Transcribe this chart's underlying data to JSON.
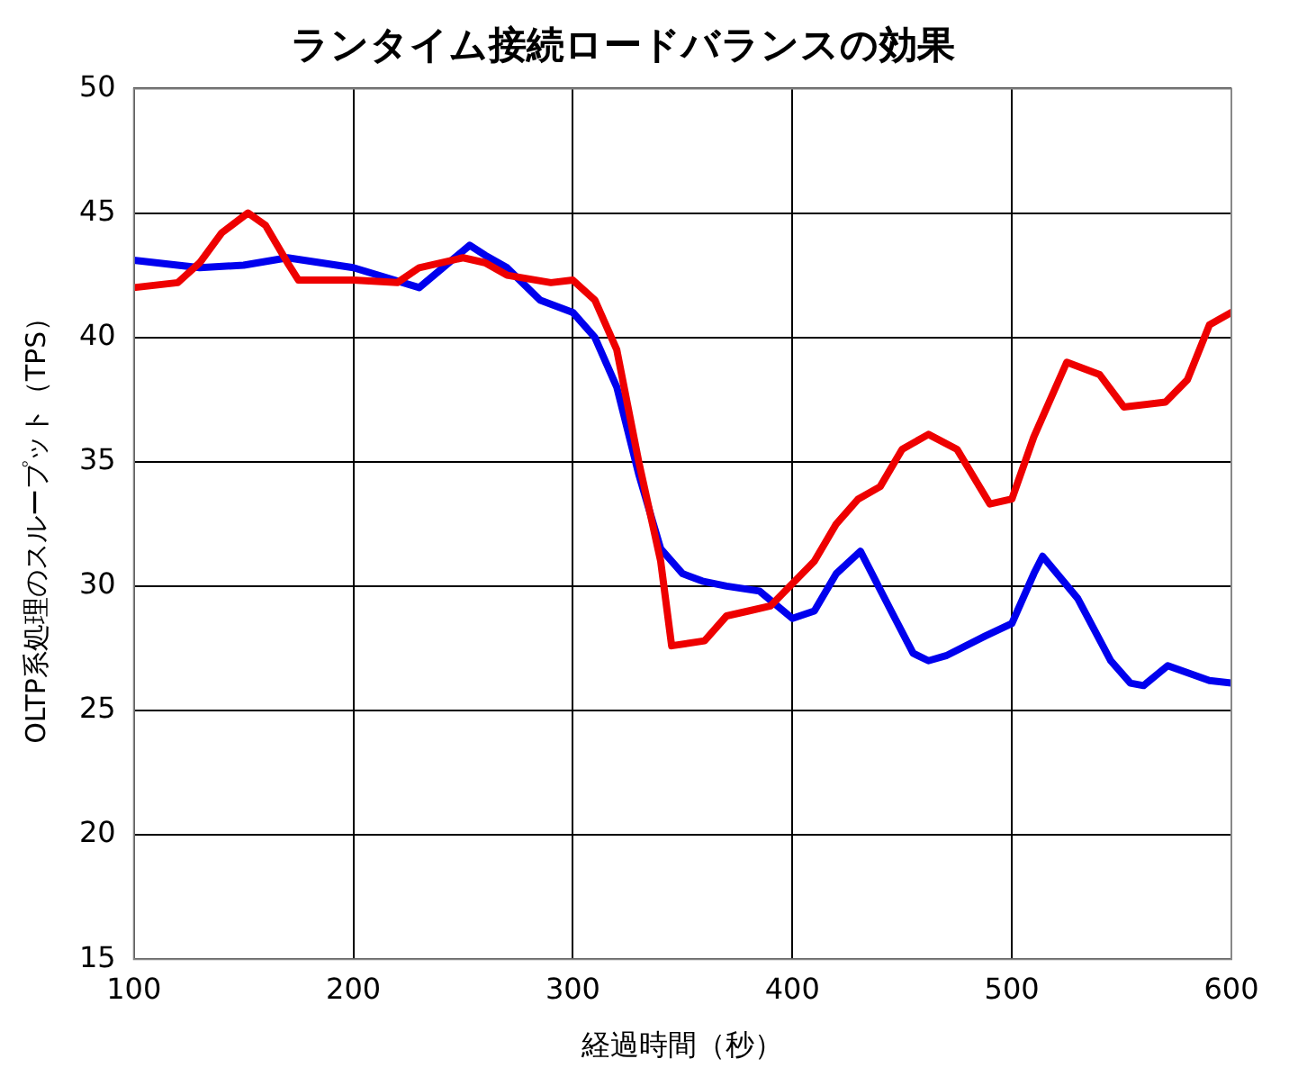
{
  "chart_data": {
    "type": "line",
    "title": "ランタイム接続ロードバランスの効果",
    "xlabel": "経過時間（秒）",
    "ylabel": "OLTP系処理のスループット（TPS）",
    "xlim": [
      100,
      600
    ],
    "xticks": [
      100,
      200,
      300,
      400,
      500,
      600
    ],
    "ylim": [
      15,
      50
    ],
    "yticks": [
      15,
      20,
      25,
      30,
      35,
      40,
      45,
      50
    ],
    "grid": true,
    "legend": false,
    "marker": "none",
    "line_style": "solid",
    "series": [
      {
        "color": "#ee0000",
        "x": [
          100,
          120,
          130,
          140,
          152,
          160,
          170,
          175,
          200,
          220,
          230,
          250,
          260,
          270,
          290,
          300,
          310,
          320,
          330,
          340,
          345,
          360,
          370,
          380,
          390,
          410,
          420,
          430,
          440,
          450,
          462,
          475,
          490,
          500,
          510,
          525,
          540,
          551,
          570,
          580,
          590,
          600
        ],
        "values": [
          42,
          42.2,
          43,
          44.2,
          45,
          44.5,
          43,
          42.3,
          42.3,
          42.2,
          42.8,
          43.2,
          43,
          42.5,
          42.2,
          42.3,
          41.5,
          39.5,
          35,
          31,
          27.6,
          27.8,
          28.8,
          29,
          29.2,
          31,
          32.5,
          33.5,
          34,
          35.5,
          36.1,
          35.5,
          33.3,
          33.5,
          36,
          39,
          38.5,
          37.2,
          37.4,
          38.3,
          40.5,
          41
        ]
      },
      {
        "color": "#0000ee",
        "x": [
          100,
          130,
          150,
          170,
          200,
          230,
          253,
          260,
          270,
          285,
          300,
          310,
          320,
          330,
          340,
          350,
          359,
          370,
          385,
          400,
          410,
          420,
          431,
          445,
          455,
          462,
          470,
          488,
          500,
          510,
          514,
          530,
          545,
          554,
          560,
          571,
          590,
          600
        ],
        "values": [
          43.1,
          42.8,
          42.9,
          43.2,
          42.8,
          42,
          43.7,
          43.3,
          42.8,
          41.5,
          41,
          40,
          38,
          34.5,
          31.5,
          30.5,
          30.2,
          30,
          29.8,
          28.7,
          29,
          30.5,
          31.4,
          29,
          27.3,
          27,
          27.2,
          28,
          28.5,
          30.5,
          31.2,
          29.5,
          27,
          26.1,
          26,
          26.8,
          26.2,
          26.1
        ]
      }
    ]
  }
}
